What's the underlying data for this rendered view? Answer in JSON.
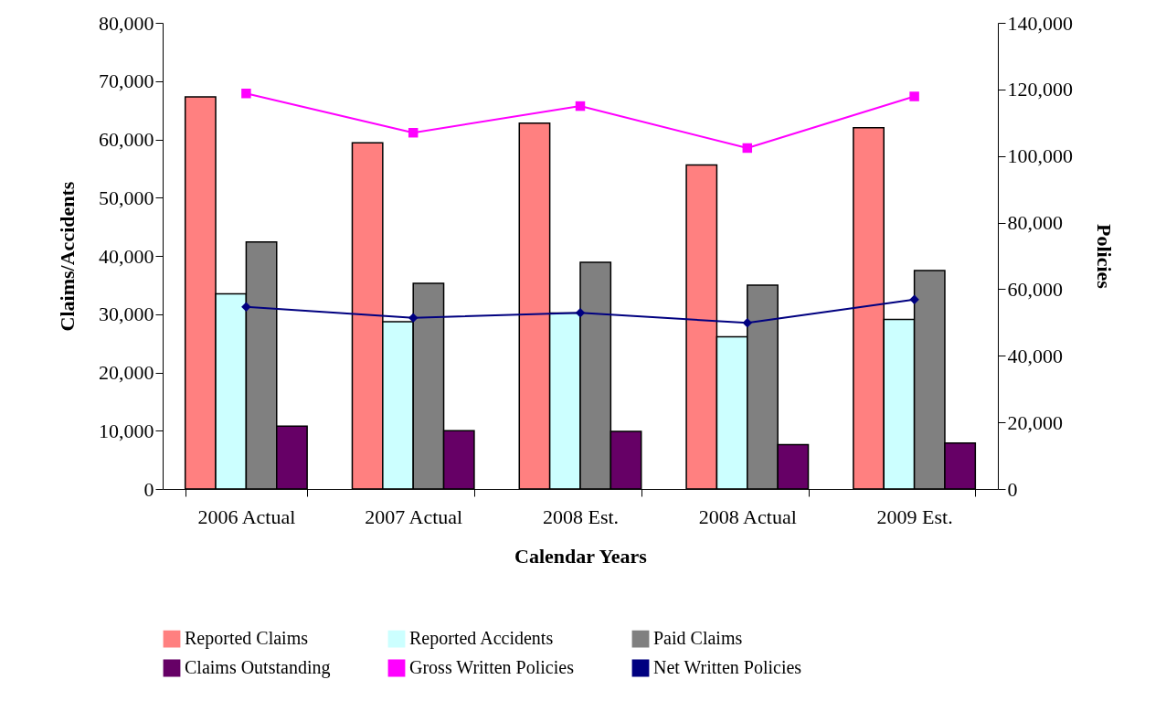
{
  "chart_data": {
    "type": "bar",
    "xlabel": "Calendar Years",
    "ylabel": "Claims/Accidents",
    "y2label": "Policies",
    "categories": [
      "2006 Actual",
      "2007 Actual",
      "2008 Est.",
      "2008 Actual",
      "2009 Est."
    ],
    "series": [
      {
        "name": "Reported Claims",
        "color": "#ff8080",
        "values": [
          67300,
          59400,
          62800,
          55600,
          62000
        ]
      },
      {
        "name": "Reported Accidents",
        "color": "#ccffff",
        "values": [
          33500,
          28700,
          30200,
          26100,
          29100
        ]
      },
      {
        "name": "Paid Claims",
        "color": "#808080",
        "values": [
          42400,
          35300,
          38900,
          35000,
          37500
        ]
      },
      {
        "name": "Claims Outstanding",
        "color": "#660066",
        "values": [
          10800,
          10000,
          9900,
          7600,
          7900
        ]
      },
      {
        "name": "Gross Written Policies",
        "type": "line",
        "axis": "y2",
        "marker": "square",
        "color": "#ff00ff",
        "values": [
          118800,
          107000,
          115000,
          102400,
          117900
        ]
      },
      {
        "name": "Net Written Policies",
        "type": "line",
        "axis": "y2",
        "marker": "diamond",
        "color": "#000080",
        "values": [
          54700,
          51400,
          52900,
          49900,
          56900
        ]
      }
    ],
    "ylim": [
      0,
      80000
    ],
    "yticks": [
      0,
      {
        "value": 10000,
        "label": "10,000"
      },
      {
        "value": 20000,
        "label": "20,000"
      },
      {
        "value": 30000,
        "label": "30,000"
      },
      {
        "value": 40000,
        "label": "40,000"
      },
      {
        "value": 50000,
        "label": "50,000"
      },
      {
        "value": 60000,
        "label": "60,000"
      },
      {
        "value": 70000,
        "label": "70,000"
      },
      {
        "value": 80000,
        "label": "80,000"
      }
    ],
    "y2lim": [
      0,
      140000
    ],
    "y2ticks": [
      0,
      {
        "value": 20000,
        "label": "20,000"
      },
      {
        "value": 40000,
        "label": "40,000"
      },
      {
        "value": 60000,
        "label": "60,000"
      },
      {
        "value": 80000,
        "label": "80,000"
      },
      {
        "value": 100000,
        "label": "100,000"
      },
      {
        "value": 120000,
        "label": "120,000"
      },
      {
        "value": 140000,
        "label": "140,000"
      }
    ],
    "grid": false,
    "legend": "bottom"
  }
}
